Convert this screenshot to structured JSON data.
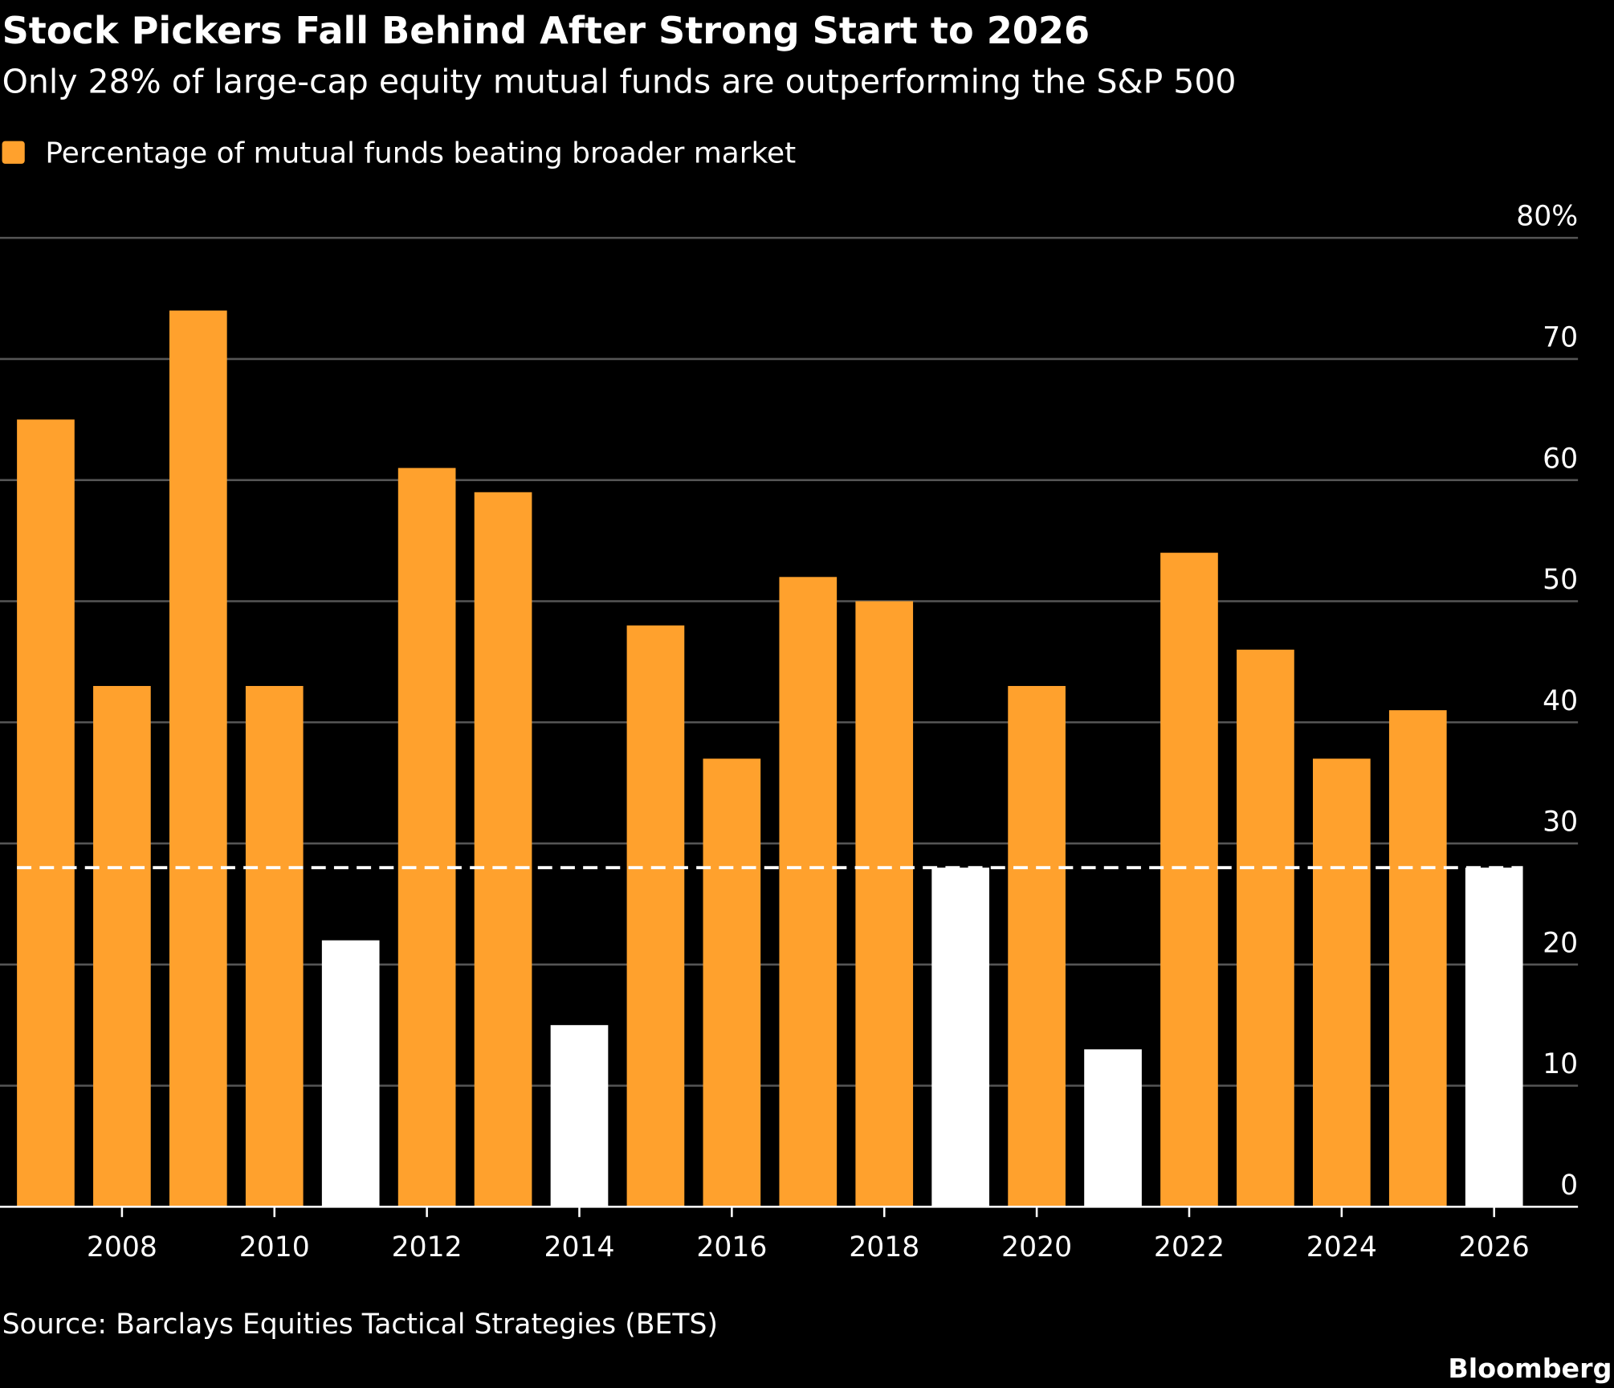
{
  "chart_data": {
    "type": "bar",
    "title": "Stock Pickers Fall Behind After Strong Start to 2026",
    "subtitle": "Only 28% of large-cap equity mutual funds are outperforming the S&P 500",
    "source": "Source: Barclays Equities Tactical Strategies (BETS)",
    "brand": "Bloomberg",
    "x": [
      2007,
      2008,
      2009,
      2010,
      2011,
      2012,
      2013,
      2014,
      2015,
      2016,
      2017,
      2018,
      2019,
      2020,
      2021,
      2022,
      2023,
      2024,
      2025,
      2026
    ],
    "series": [
      {
        "name": "Percentage of mutual funds beating broader market",
        "color": "#ffa12d",
        "values": [
          65,
          43,
          74,
          43,
          22,
          61,
          59,
          15,
          48,
          37,
          52,
          50,
          28,
          43,
          13,
          54,
          46,
          37,
          41,
          28
        ],
        "colors": [
          "#ffa12d",
          "#ffa12d",
          "#ffa12d",
          "#ffa12d",
          "#ffffff",
          "#ffa12d",
          "#ffa12d",
          "#ffffff",
          "#ffa12d",
          "#ffa12d",
          "#ffa12d",
          "#ffa12d",
          "#ffffff",
          "#ffa12d",
          "#ffffff",
          "#ffa12d",
          "#ffa12d",
          "#ffa12d",
          "#ffa12d",
          "#ffffff"
        ]
      }
    ],
    "reference_line": 28,
    "xlim": [
      2006.4,
      2027.1
    ],
    "xticks": [
      2008,
      2010,
      2012,
      2014,
      2016,
      2018,
      2020,
      2022,
      2024,
      2026
    ],
    "ylim": [
      0,
      80
    ],
    "yticks": [
      0,
      10,
      20,
      30,
      40,
      50,
      60,
      70,
      {
        "value": 80,
        "label": "80%"
      }
    ],
    "grid": true
  }
}
